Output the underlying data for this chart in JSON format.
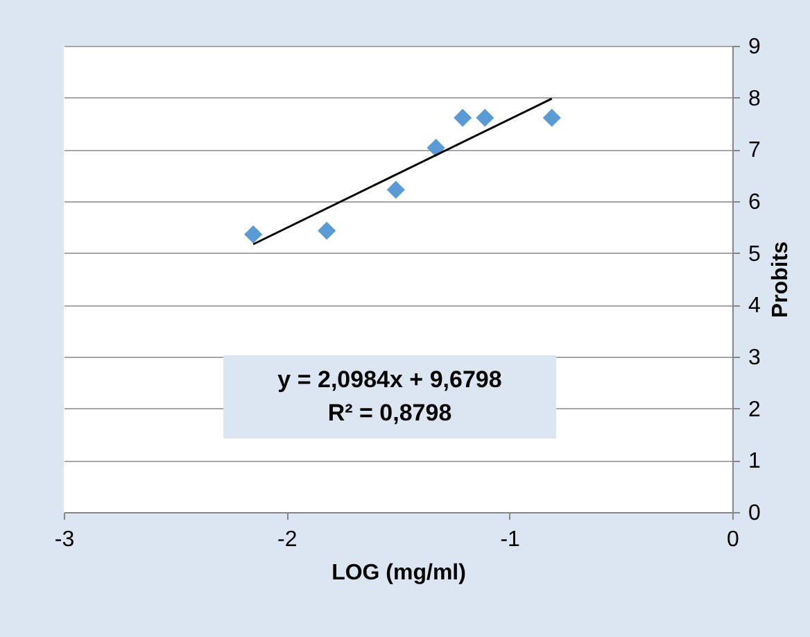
{
  "chart_data": {
    "type": "scatter",
    "xlabel": "LOG (mg/ml)",
    "ylabel": "Probits",
    "annotations": [
      "y = 2,0984x + 9,6798",
      "R² = 0,8798"
    ],
    "xlim": [
      -3,
      0
    ],
    "xticks": [
      -3,
      -2,
      -1,
      0
    ],
    "ylim": [
      0,
      9
    ],
    "yticks": [
      0,
      1,
      2,
      3,
      4,
      5,
      6,
      7,
      8,
      9
    ],
    "grid": "y",
    "series": [
      {
        "marker": "diamond",
        "color": "#5b9bd5",
        "x": [
          -2.15,
          -1.82,
          -1.51,
          -1.33,
          -1.21,
          -1.11,
          -0.81
        ],
        "values": [
          5.36,
          5.43,
          6.22,
          7.03,
          7.61,
          7.61,
          7.61
        ]
      },
      {
        "type": "line",
        "color": "#000000",
        "x": [
          -2.15,
          -0.81
        ],
        "values": [
          5.17,
          7.98
        ]
      }
    ]
  }
}
